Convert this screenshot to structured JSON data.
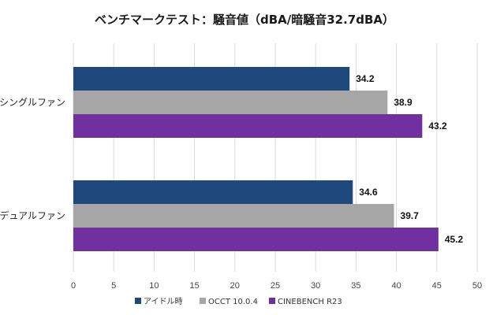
{
  "chart_data": {
    "type": "bar",
    "orientation": "horizontal",
    "title": "ベンチマークテスト：騒音値（dBA/暗騒音32.7dBA）",
    "categories": [
      "シングルファン",
      "デュアルファン"
    ],
    "series": [
      {
        "name": "アイドル時",
        "color": "#1f497d",
        "values": [
          34.2,
          34.6
        ]
      },
      {
        "name": "OCCT 10.0.4",
        "color": "#a6a6a6",
        "values": [
          38.9,
          39.7
        ]
      },
      {
        "name": "CINEBENCH R23",
        "color": "#7030a0",
        "values": [
          43.2,
          45.2
        ]
      }
    ],
    "data_labels": [
      [
        "34.2",
        "38.9",
        "43.2"
      ],
      [
        "34.6",
        "39.7",
        "45.2"
      ]
    ],
    "xlim": [
      0,
      50
    ],
    "xticks": [
      0,
      5,
      10,
      15,
      20,
      25,
      30,
      35,
      40,
      45,
      50
    ],
    "tick_labels": [
      "0",
      "5",
      "10",
      "15",
      "20",
      "25",
      "30",
      "35",
      "40",
      "45",
      "50"
    ],
    "grid": true,
    "legend_position": "bottom"
  }
}
